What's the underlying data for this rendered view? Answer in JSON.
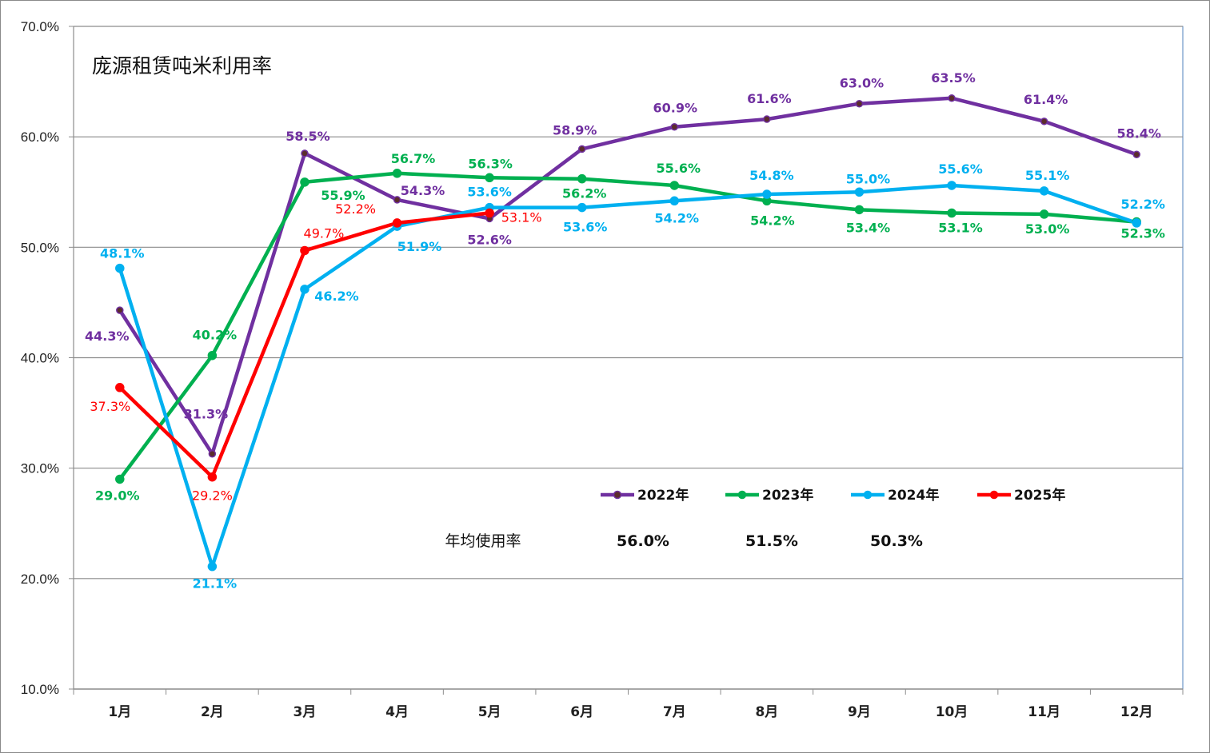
{
  "title": "庞源租赁吨米利用率",
  "stats_label": "年均使用率",
  "chart": {
    "type": "line",
    "categories": [
      "1月",
      "2月",
      "3月",
      "4月",
      "5月",
      "6月",
      "7月",
      "8月",
      "9月",
      "10月",
      "11月",
      "12月"
    ],
    "y_ticks": [
      "70.0%",
      "60.0%",
      "50.0%",
      "40.0%",
      "30.0%",
      "20.0%",
      "10.0%"
    ],
    "ylim": [
      10,
      70
    ],
    "grid": true,
    "legend_position": "center-bottom",
    "series": [
      {
        "name": "2022年",
        "color": "#7030A0",
        "marker_color": "#5B2C2C",
        "average": "56.0%",
        "values": [
          44.3,
          31.3,
          58.5,
          54.3,
          52.6,
          58.9,
          60.9,
          61.6,
          63.0,
          63.5,
          61.4,
          58.4
        ],
        "labels": [
          "44.3%",
          "31.3%",
          "58.5%",
          "54.3%",
          "52.6%",
          "58.9%",
          "60.9%",
          "61.6%",
          "63.0%",
          "63.5%",
          "61.4%",
          "58.4%"
        ]
      },
      {
        "name": "2023年",
        "color": "#00B050",
        "marker_color": "#00B050",
        "average": "51.5%",
        "values": [
          29.0,
          40.2,
          55.9,
          56.7,
          56.3,
          56.2,
          55.6,
          54.2,
          53.4,
          53.1,
          53.0,
          52.3
        ],
        "labels": [
          "29.0%",
          "40.2%",
          "55.9%",
          "56.7%",
          "56.3%",
          "56.2%",
          "55.6%",
          "54.2%",
          "53.4%",
          "53.1%",
          "53.0%",
          "52.3%"
        ]
      },
      {
        "name": "2024年",
        "color": "#00B0F0",
        "marker_color": "#00B0F0",
        "average": "50.3%",
        "values": [
          48.1,
          21.1,
          46.2,
          51.9,
          53.6,
          53.6,
          54.2,
          54.8,
          55.0,
          55.6,
          55.1,
          52.2
        ],
        "labels": [
          "48.1%",
          "21.1%",
          "46.2%",
          "51.9%",
          "53.6%",
          "53.6%",
          "54.2%",
          "54.8%",
          "55.0%",
          "55.6%",
          "55.1%",
          "52.2%"
        ]
      },
      {
        "name": "2025年",
        "color": "#FF0000",
        "marker_color": "#FF0000",
        "average": "",
        "values": [
          37.3,
          29.2,
          49.7,
          52.2,
          53.1
        ],
        "labels": [
          "37.3%",
          "29.2%",
          "49.7%",
          "52.2%",
          "53.1%"
        ]
      }
    ]
  }
}
